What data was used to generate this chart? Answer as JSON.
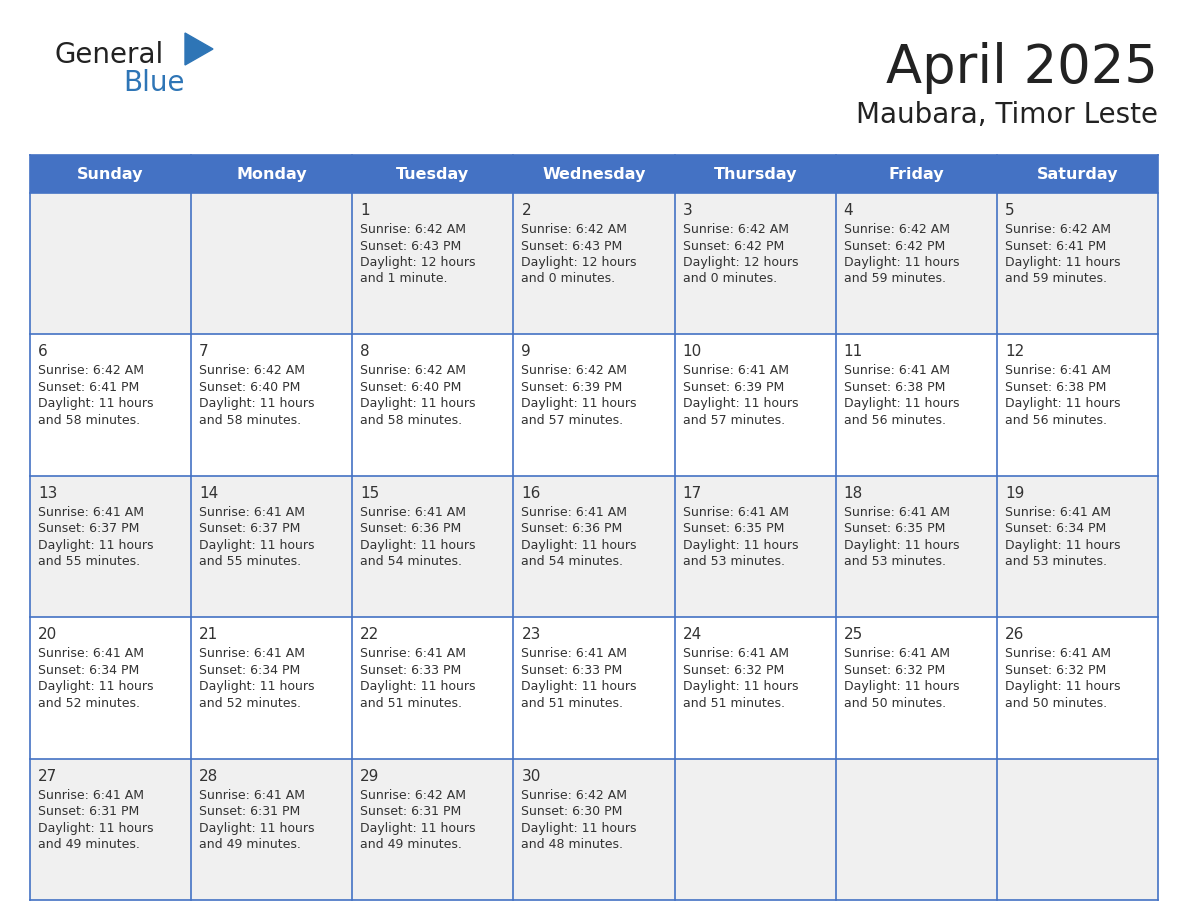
{
  "title": "April 2025",
  "subtitle": "Maubara, Timor Leste",
  "header_bg": "#4472C4",
  "header_text": "#FFFFFF",
  "row_bg_even": "#FFFFFF",
  "row_bg_odd": "#F0F0F0",
  "grid_line_color": "#4472C4",
  "day_names": [
    "Sunday",
    "Monday",
    "Tuesday",
    "Wednesday",
    "Thursday",
    "Friday",
    "Saturday"
  ],
  "title_color": "#222222",
  "cell_text_color": "#333333",
  "day_number_color": "#333333",
  "logo_general_color": "#222222",
  "logo_blue_color": "#2E75B6",
  "weeks": [
    [
      {
        "date": "",
        "sunrise": "",
        "sunset": "",
        "daylight_h": "",
        "daylight_m": ""
      },
      {
        "date": "",
        "sunrise": "",
        "sunset": "",
        "daylight_h": "",
        "daylight_m": ""
      },
      {
        "date": "1",
        "sunrise": "6:42 AM",
        "sunset": "6:43 PM",
        "daylight_h": "12 hours",
        "daylight_m": "and 1 minute."
      },
      {
        "date": "2",
        "sunrise": "6:42 AM",
        "sunset": "6:43 PM",
        "daylight_h": "12 hours",
        "daylight_m": "and 0 minutes."
      },
      {
        "date": "3",
        "sunrise": "6:42 AM",
        "sunset": "6:42 PM",
        "daylight_h": "12 hours",
        "daylight_m": "and 0 minutes."
      },
      {
        "date": "4",
        "sunrise": "6:42 AM",
        "sunset": "6:42 PM",
        "daylight_h": "11 hours",
        "daylight_m": "and 59 minutes."
      },
      {
        "date": "5",
        "sunrise": "6:42 AM",
        "sunset": "6:41 PM",
        "daylight_h": "11 hours",
        "daylight_m": "and 59 minutes."
      }
    ],
    [
      {
        "date": "6",
        "sunrise": "6:42 AM",
        "sunset": "6:41 PM",
        "daylight_h": "11 hours",
        "daylight_m": "and 58 minutes."
      },
      {
        "date": "7",
        "sunrise": "6:42 AM",
        "sunset": "6:40 PM",
        "daylight_h": "11 hours",
        "daylight_m": "and 58 minutes."
      },
      {
        "date": "8",
        "sunrise": "6:42 AM",
        "sunset": "6:40 PM",
        "daylight_h": "11 hours",
        "daylight_m": "and 58 minutes."
      },
      {
        "date": "9",
        "sunrise": "6:42 AM",
        "sunset": "6:39 PM",
        "daylight_h": "11 hours",
        "daylight_m": "and 57 minutes."
      },
      {
        "date": "10",
        "sunrise": "6:41 AM",
        "sunset": "6:39 PM",
        "daylight_h": "11 hours",
        "daylight_m": "and 57 minutes."
      },
      {
        "date": "11",
        "sunrise": "6:41 AM",
        "sunset": "6:38 PM",
        "daylight_h": "11 hours",
        "daylight_m": "and 56 minutes."
      },
      {
        "date": "12",
        "sunrise": "6:41 AM",
        "sunset": "6:38 PM",
        "daylight_h": "11 hours",
        "daylight_m": "and 56 minutes."
      }
    ],
    [
      {
        "date": "13",
        "sunrise": "6:41 AM",
        "sunset": "6:37 PM",
        "daylight_h": "11 hours",
        "daylight_m": "and 55 minutes."
      },
      {
        "date": "14",
        "sunrise": "6:41 AM",
        "sunset": "6:37 PM",
        "daylight_h": "11 hours",
        "daylight_m": "and 55 minutes."
      },
      {
        "date": "15",
        "sunrise": "6:41 AM",
        "sunset": "6:36 PM",
        "daylight_h": "11 hours",
        "daylight_m": "and 54 minutes."
      },
      {
        "date": "16",
        "sunrise": "6:41 AM",
        "sunset": "6:36 PM",
        "daylight_h": "11 hours",
        "daylight_m": "and 54 minutes."
      },
      {
        "date": "17",
        "sunrise": "6:41 AM",
        "sunset": "6:35 PM",
        "daylight_h": "11 hours",
        "daylight_m": "and 53 minutes."
      },
      {
        "date": "18",
        "sunrise": "6:41 AM",
        "sunset": "6:35 PM",
        "daylight_h": "11 hours",
        "daylight_m": "and 53 minutes."
      },
      {
        "date": "19",
        "sunrise": "6:41 AM",
        "sunset": "6:34 PM",
        "daylight_h": "11 hours",
        "daylight_m": "and 53 minutes."
      }
    ],
    [
      {
        "date": "20",
        "sunrise": "6:41 AM",
        "sunset": "6:34 PM",
        "daylight_h": "11 hours",
        "daylight_m": "and 52 minutes."
      },
      {
        "date": "21",
        "sunrise": "6:41 AM",
        "sunset": "6:34 PM",
        "daylight_h": "11 hours",
        "daylight_m": "and 52 minutes."
      },
      {
        "date": "22",
        "sunrise": "6:41 AM",
        "sunset": "6:33 PM",
        "daylight_h": "11 hours",
        "daylight_m": "and 51 minutes."
      },
      {
        "date": "23",
        "sunrise": "6:41 AM",
        "sunset": "6:33 PM",
        "daylight_h": "11 hours",
        "daylight_m": "and 51 minutes."
      },
      {
        "date": "24",
        "sunrise": "6:41 AM",
        "sunset": "6:32 PM",
        "daylight_h": "11 hours",
        "daylight_m": "and 51 minutes."
      },
      {
        "date": "25",
        "sunrise": "6:41 AM",
        "sunset": "6:32 PM",
        "daylight_h": "11 hours",
        "daylight_m": "and 50 minutes."
      },
      {
        "date": "26",
        "sunrise": "6:41 AM",
        "sunset": "6:32 PM",
        "daylight_h": "11 hours",
        "daylight_m": "and 50 minutes."
      }
    ],
    [
      {
        "date": "27",
        "sunrise": "6:41 AM",
        "sunset": "6:31 PM",
        "daylight_h": "11 hours",
        "daylight_m": "and 49 minutes."
      },
      {
        "date": "28",
        "sunrise": "6:41 AM",
        "sunset": "6:31 PM",
        "daylight_h": "11 hours",
        "daylight_m": "and 49 minutes."
      },
      {
        "date": "29",
        "sunrise": "6:42 AM",
        "sunset": "6:31 PM",
        "daylight_h": "11 hours",
        "daylight_m": "and 49 minutes."
      },
      {
        "date": "30",
        "sunrise": "6:42 AM",
        "sunset": "6:30 PM",
        "daylight_h": "11 hours",
        "daylight_m": "and 48 minutes."
      },
      {
        "date": "",
        "sunrise": "",
        "sunset": "",
        "daylight_h": "",
        "daylight_m": ""
      },
      {
        "date": "",
        "sunrise": "",
        "sunset": "",
        "daylight_h": "",
        "daylight_m": ""
      },
      {
        "date": "",
        "sunrise": "",
        "sunset": "",
        "daylight_h": "",
        "daylight_m": ""
      }
    ]
  ]
}
